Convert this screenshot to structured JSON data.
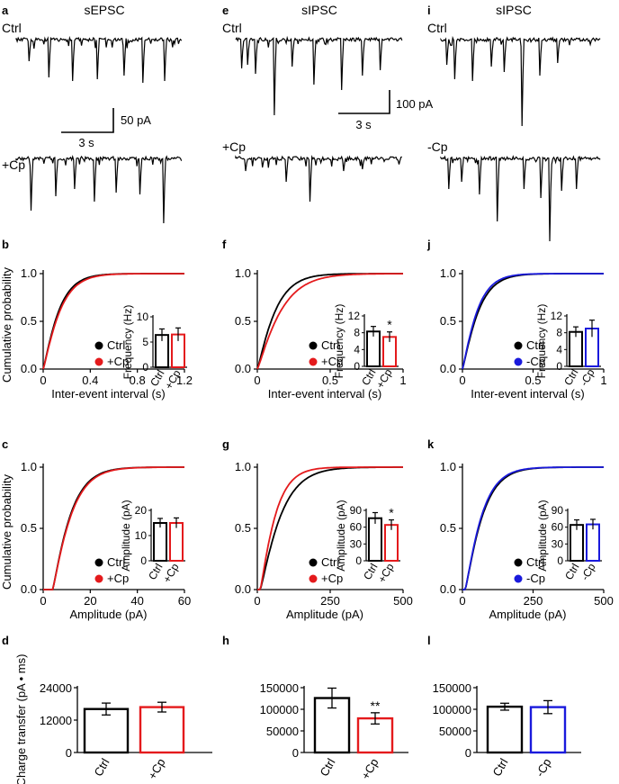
{
  "figure": {
    "columns": [
      {
        "id": "sepsc",
        "title": "sEPSC",
        "trace_top": "Ctrl",
        "trace_bottom": "+Cp",
        "scale_time": "3 s",
        "scale_amp": "50 pA",
        "color": "#e41a1c"
      },
      {
        "id": "sipsc_cp",
        "title": "sIPSC",
        "trace_top": "Ctrl",
        "trace_bottom": "+Cp",
        "scale_time": "3 s",
        "scale_amp": "100 pA",
        "color": "#e41a1c"
      },
      {
        "id": "sipsc_nocp",
        "title": "sIPSC",
        "trace_top": "Ctrl",
        "trace_bottom": "-Cp",
        "color": "#1a1adc"
      }
    ],
    "panel_letters": [
      "a",
      "e",
      "i",
      "b",
      "f",
      "j",
      "c",
      "g",
      "k",
      "d",
      "h",
      "l"
    ]
  },
  "chart_data": [
    {
      "panel": "b",
      "type": "line",
      "xlabel": "Inter-event interval (s)",
      "ylabel": "Cumulative probability",
      "xlim": [
        0,
        1.2
      ],
      "ylim": [
        0,
        1
      ],
      "xticks": [
        "0",
        "0.4",
        "0.8",
        "1.2"
      ],
      "yticks": [
        "0.0",
        "0.5",
        "1.0"
      ],
      "series": [
        {
          "name": "Ctrl",
          "color": "#000000",
          "tau": 0.14
        },
        {
          "name": "+Cp",
          "color": "#e41a1c",
          "tau": 0.15
        }
      ],
      "inset": {
        "type": "bar",
        "ylabel": "Frequency (Hz)",
        "categories": [
          "Ctrl",
          "+Cp"
        ],
        "values": [
          6.4,
          6.5
        ],
        "errors": [
          1.2,
          1.3
        ],
        "ylim": [
          0,
          10
        ],
        "yticks": [
          "0",
          "5",
          "10"
        ],
        "sig": ""
      }
    },
    {
      "panel": "f",
      "type": "line",
      "xlabel": "Inter-event interval (s)",
      "ylabel": "",
      "xlim": [
        0,
        1
      ],
      "ylim": [
        0,
        1
      ],
      "xticks": [
        "0",
        "0.5",
        "1"
      ],
      "yticks": [
        "0.0",
        "0.5",
        "1.0"
      ],
      "series": [
        {
          "name": "Ctrl",
          "color": "#000000",
          "tau": 0.13
        },
        {
          "name": "+Cp",
          "color": "#e41a1c",
          "tau": 0.17
        }
      ],
      "inset": {
        "type": "bar",
        "ylabel": "Frequency (Hz)",
        "categories": [
          "Ctrl",
          "+Cp"
        ],
        "values": [
          8.3,
          7.0
        ],
        "errors": [
          1.2,
          1.2
        ],
        "ylim": [
          0,
          12
        ],
        "yticks": [
          "0",
          "4",
          "8",
          "12"
        ],
        "sig": "*"
      }
    },
    {
      "panel": "j",
      "type": "line",
      "xlabel": "Inter-event interval (s)",
      "ylabel": "",
      "xlim": [
        0,
        1
      ],
      "ylim": [
        0,
        1
      ],
      "xticks": [
        "0",
        "0.5",
        "1"
      ],
      "yticks": [
        "0.0",
        "0.5",
        "1.0"
      ],
      "series": [
        {
          "name": "Ctrl",
          "color": "#000000",
          "tau": 0.12
        },
        {
          "name": "-Cp",
          "color": "#1a1adc",
          "tau": 0.11
        }
      ],
      "inset": {
        "type": "bar",
        "ylabel": "Frequency (Hz)",
        "categories": [
          "Ctrl",
          "-Cp"
        ],
        "values": [
          8.2,
          9.0
        ],
        "errors": [
          1.2,
          2.0
        ],
        "ylim": [
          0,
          12
        ],
        "yticks": [
          "0",
          "4",
          "8",
          "12"
        ],
        "sig": ""
      }
    },
    {
      "panel": "c",
      "type": "line",
      "xlabel": "Amplitude (pA)",
      "ylabel": "Cumulative probability",
      "xlim": [
        0,
        60
      ],
      "ylim": [
        0,
        1
      ],
      "xticks": [
        "0",
        "20",
        "40",
        "60"
      ],
      "yticks": [
        "0.0",
        "0.5",
        "1.0"
      ],
      "series": [
        {
          "name": "Ctrl",
          "color": "#000000",
          "tau": 8.0,
          "x0": 4
        },
        {
          "name": "+Cp",
          "color": "#e41a1c",
          "tau": 8.3,
          "x0": 4
        }
      ],
      "inset": {
        "type": "bar",
        "ylabel": "Amplitude (pA)",
        "categories": [
          "Ctrl",
          "+Cp"
        ],
        "values": [
          15.0,
          15.0
        ],
        "errors": [
          1.8,
          2.0
        ],
        "ylim": [
          0,
          20
        ],
        "yticks": [
          "0",
          "10",
          "20"
        ],
        "sig": ""
      }
    },
    {
      "panel": "g",
      "type": "line",
      "xlabel": "Amplitude (pA)",
      "ylabel": "",
      "xlim": [
        0,
        500
      ],
      "ylim": [
        0,
        1
      ],
      "xticks": [
        "0",
        "250",
        "500"
      ],
      "yticks": [
        "0.0",
        "0.5",
        "1.0"
      ],
      "series": [
        {
          "name": "Ctrl",
          "color": "#000000",
          "tau": 75,
          "x0": 10
        },
        {
          "name": "+Cp",
          "color": "#e41a1c",
          "tau": 55,
          "x0": 10
        }
      ],
      "inset": {
        "type": "bar",
        "ylabel": "Amplitude (pA)",
        "categories": [
          "Ctrl",
          "+Cp"
        ],
        "values": [
          76,
          64
        ],
        "errors": [
          10,
          9
        ],
        "ylim": [
          0,
          90
        ],
        "yticks": [
          "0",
          "30",
          "60",
          "90"
        ],
        "sig": "*"
      }
    },
    {
      "panel": "k",
      "type": "line",
      "xlabel": "Amplitude (pA)",
      "ylabel": "",
      "xlim": [
        0,
        500
      ],
      "ylim": [
        0,
        1
      ],
      "xticks": [
        "0",
        "250",
        "500"
      ],
      "yticks": [
        "0.0",
        "0.5",
        "1.0"
      ],
      "series": [
        {
          "name": "Ctrl",
          "color": "#000000",
          "tau": 65,
          "x0": 10
        },
        {
          "name": "-Cp",
          "color": "#1a1adc",
          "tau": 62,
          "x0": 10
        }
      ],
      "inset": {
        "type": "bar",
        "ylabel": "Amplitude (pA)",
        "categories": [
          "Ctrl",
          "-Cp"
        ],
        "values": [
          64,
          65
        ],
        "errors": [
          9,
          9
        ],
        "ylim": [
          0,
          90
        ],
        "yticks": [
          "0",
          "30",
          "60",
          "90"
        ],
        "sig": ""
      }
    },
    {
      "panel": "d",
      "type": "bar",
      "ylabel": "Charge transfer (pA • ms)",
      "categories": [
        "Ctrl",
        "+Cp"
      ],
      "values": [
        16100,
        16800
      ],
      "errors": [
        2200,
        1800
      ],
      "ylim": [
        0,
        24000
      ],
      "yticks": [
        "0",
        "12000",
        "24000"
      ],
      "sig": ""
    },
    {
      "panel": "h",
      "type": "bar",
      "ylabel": "",
      "categories": [
        "Ctrl",
        "+Cp"
      ],
      "values": [
        126000,
        79000
      ],
      "errors": [
        23000,
        13000
      ],
      "ylim": [
        0,
        150000
      ],
      "yticks": [
        "0",
        "50000",
        "100000",
        "150000"
      ],
      "sig": "**"
    },
    {
      "panel": "l",
      "type": "bar",
      "ylabel": "",
      "categories": [
        "Ctrl",
        "-Cp"
      ],
      "values": [
        106000,
        105000
      ],
      "errors": [
        8000,
        15000
      ],
      "ylim": [
        0,
        150000
      ],
      "yticks": [
        "0",
        "50000",
        "100000",
        "150000"
      ],
      "sig": ""
    }
  ]
}
